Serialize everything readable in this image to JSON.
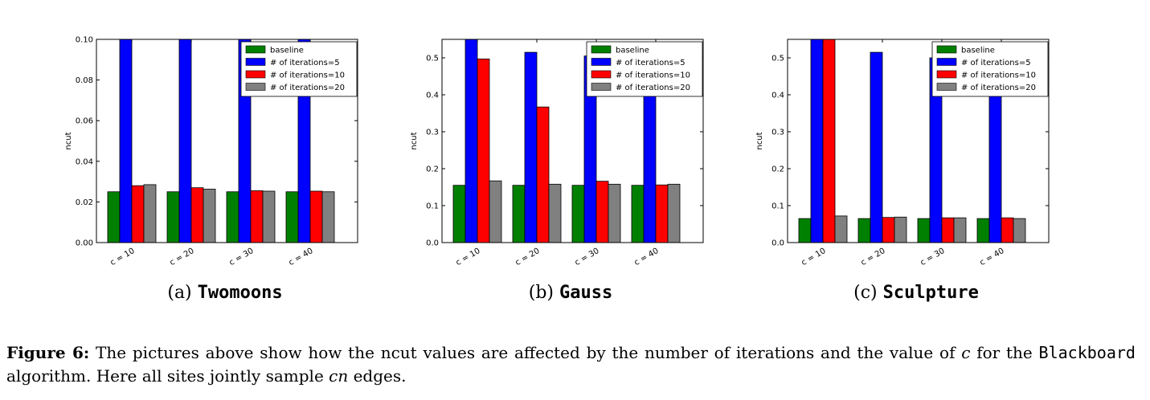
{
  "chart_data": [
    {
      "type": "bar",
      "ylabel": "ncut",
      "ylim": [
        0,
        0.1
      ],
      "yticks": [
        0.0,
        0.02,
        0.04,
        0.06,
        0.08,
        0.1
      ],
      "ytick_labels": [
        "0.00",
        "0.02",
        "0.04",
        "0.06",
        "0.08",
        "0.10"
      ],
      "categories": [
        "c = 10",
        "c = 20",
        "c = 30",
        "c = 40"
      ],
      "legend_position": "top-right",
      "series": [
        {
          "name": "baseline",
          "color": "#008000",
          "values": [
            0.025,
            0.025,
            0.025,
            0.025
          ]
        },
        {
          "name": "# of iterations=5",
          "color": "#0000ff",
          "values": [
            0.1,
            0.1,
            0.1,
            0.1
          ]
        },
        {
          "name": "# of iterations=10",
          "color": "#ff0000",
          "values": [
            0.028,
            0.027,
            0.0255,
            0.0253
          ]
        },
        {
          "name": "# of iterations=20",
          "color": "#808080",
          "values": [
            0.0285,
            0.0263,
            0.0253,
            0.025
          ]
        }
      ],
      "caption_label": "(a)",
      "caption_name": "Twomoons"
    },
    {
      "type": "bar",
      "ylabel": "ncut",
      "ylim": [
        0,
        0.55
      ],
      "yticks": [
        0.0,
        0.1,
        0.2,
        0.3,
        0.4,
        0.5
      ],
      "ytick_labels": [
        "0.0",
        "0.1",
        "0.2",
        "0.3",
        "0.4",
        "0.5"
      ],
      "categories": [
        "c = 10",
        "c = 20",
        "c = 30",
        "c = 40"
      ],
      "legend_position": "top-right",
      "series": [
        {
          "name": "baseline",
          "color": "#008000",
          "values": [
            0.155,
            0.155,
            0.155,
            0.155
          ]
        },
        {
          "name": "# of iterations=5",
          "color": "#0000ff",
          "values": [
            0.55,
            0.515,
            0.505,
            0.41
          ]
        },
        {
          "name": "# of iterations=10",
          "color": "#ff0000",
          "values": [
            0.497,
            0.367,
            0.166,
            0.156
          ]
        },
        {
          "name": "# of iterations=20",
          "color": "#808080",
          "values": [
            0.167,
            0.158,
            0.158,
            0.158
          ]
        }
      ],
      "caption_label": "(b)",
      "caption_name": "Gauss"
    },
    {
      "type": "bar",
      "ylabel": "ncut",
      "ylim": [
        0,
        0.55
      ],
      "yticks": [
        0.0,
        0.1,
        0.2,
        0.3,
        0.4,
        0.5
      ],
      "ytick_labels": [
        "0.0",
        "0.1",
        "0.2",
        "0.3",
        "0.4",
        "0.5"
      ],
      "categories": [
        "c = 10",
        "c = 20",
        "c = 30",
        "c = 40"
      ],
      "legend_position": "top-right",
      "series": [
        {
          "name": "baseline",
          "color": "#008000",
          "values": [
            0.065,
            0.065,
            0.065,
            0.065
          ]
        },
        {
          "name": "# of iterations=5",
          "color": "#0000ff",
          "values": [
            0.55,
            0.515,
            0.5,
            0.4
          ]
        },
        {
          "name": "# of iterations=10",
          "color": "#ff0000",
          "values": [
            0.55,
            0.068,
            0.067,
            0.067
          ]
        },
        {
          "name": "# of iterations=20",
          "color": "#808080",
          "values": [
            0.072,
            0.069,
            0.067,
            0.065
          ]
        }
      ],
      "caption_label": "(c)",
      "caption_name": "Sculpture"
    }
  ],
  "caption": {
    "figure_label": "Figure 6:",
    "text_1": " The pictures above show how the ncut values are affected by the number of iterations and the value of ",
    "var_c": "c",
    "text_2": " for the ",
    "algorithm": "Blackboard",
    "text_3": " algorithm. Here all sites jointly sample ",
    "var_cn": "cn",
    "text_4": " edges."
  }
}
